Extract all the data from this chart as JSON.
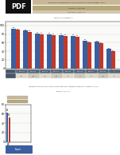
{
  "title_top_line1": "Adjusted Per-Participant Wait: % Passed Milestone in Defined Region - Phase",
  "title_top_line2": "2",
  "subtitle_top": "Number: 2 (1/1/2024)",
  "legend_line": "legend entries / comparison",
  "header_labels": [
    "AMIA-01",
    "AMIA-02",
    "AMIA-03",
    "AMIA-04",
    "AMIA-05",
    "AMIA-06",
    "AMIA-07",
    "AMIA-08",
    "All"
  ],
  "blue_values": [
    93,
    88,
    82,
    80,
    78,
    76,
    65,
    62,
    45
  ],
  "red_values": [
    90,
    85,
    80,
    78,
    76,
    74,
    60,
    58,
    40
  ],
  "bar_blue": "#3a5fa0",
  "bar_red": "#c0392b",
  "ylim": [
    0,
    110
  ],
  "yticks": [
    0,
    20,
    40,
    60,
    80,
    100
  ],
  "title_bottom": "Cumulative Pmin Distribution Adjusted Per-Participant Wait: % Passed Milestone in Defined Region - Phase 2",
  "subtitle_bottom": "Number: 2 (1/1/2024)",
  "tan1": "#c8b898",
  "tan2": "#b8a878",
  "small_blue_val": 62,
  "small_red_val": 52,
  "bg_color": "#ffffff",
  "header_dark": "#222222",
  "header_mid": "#888888",
  "table_header_bg": "#555577",
  "table_row1": "#ddd8cc",
  "table_row2": "#ccc8bc",
  "btn_color": "#3a5fa0"
}
